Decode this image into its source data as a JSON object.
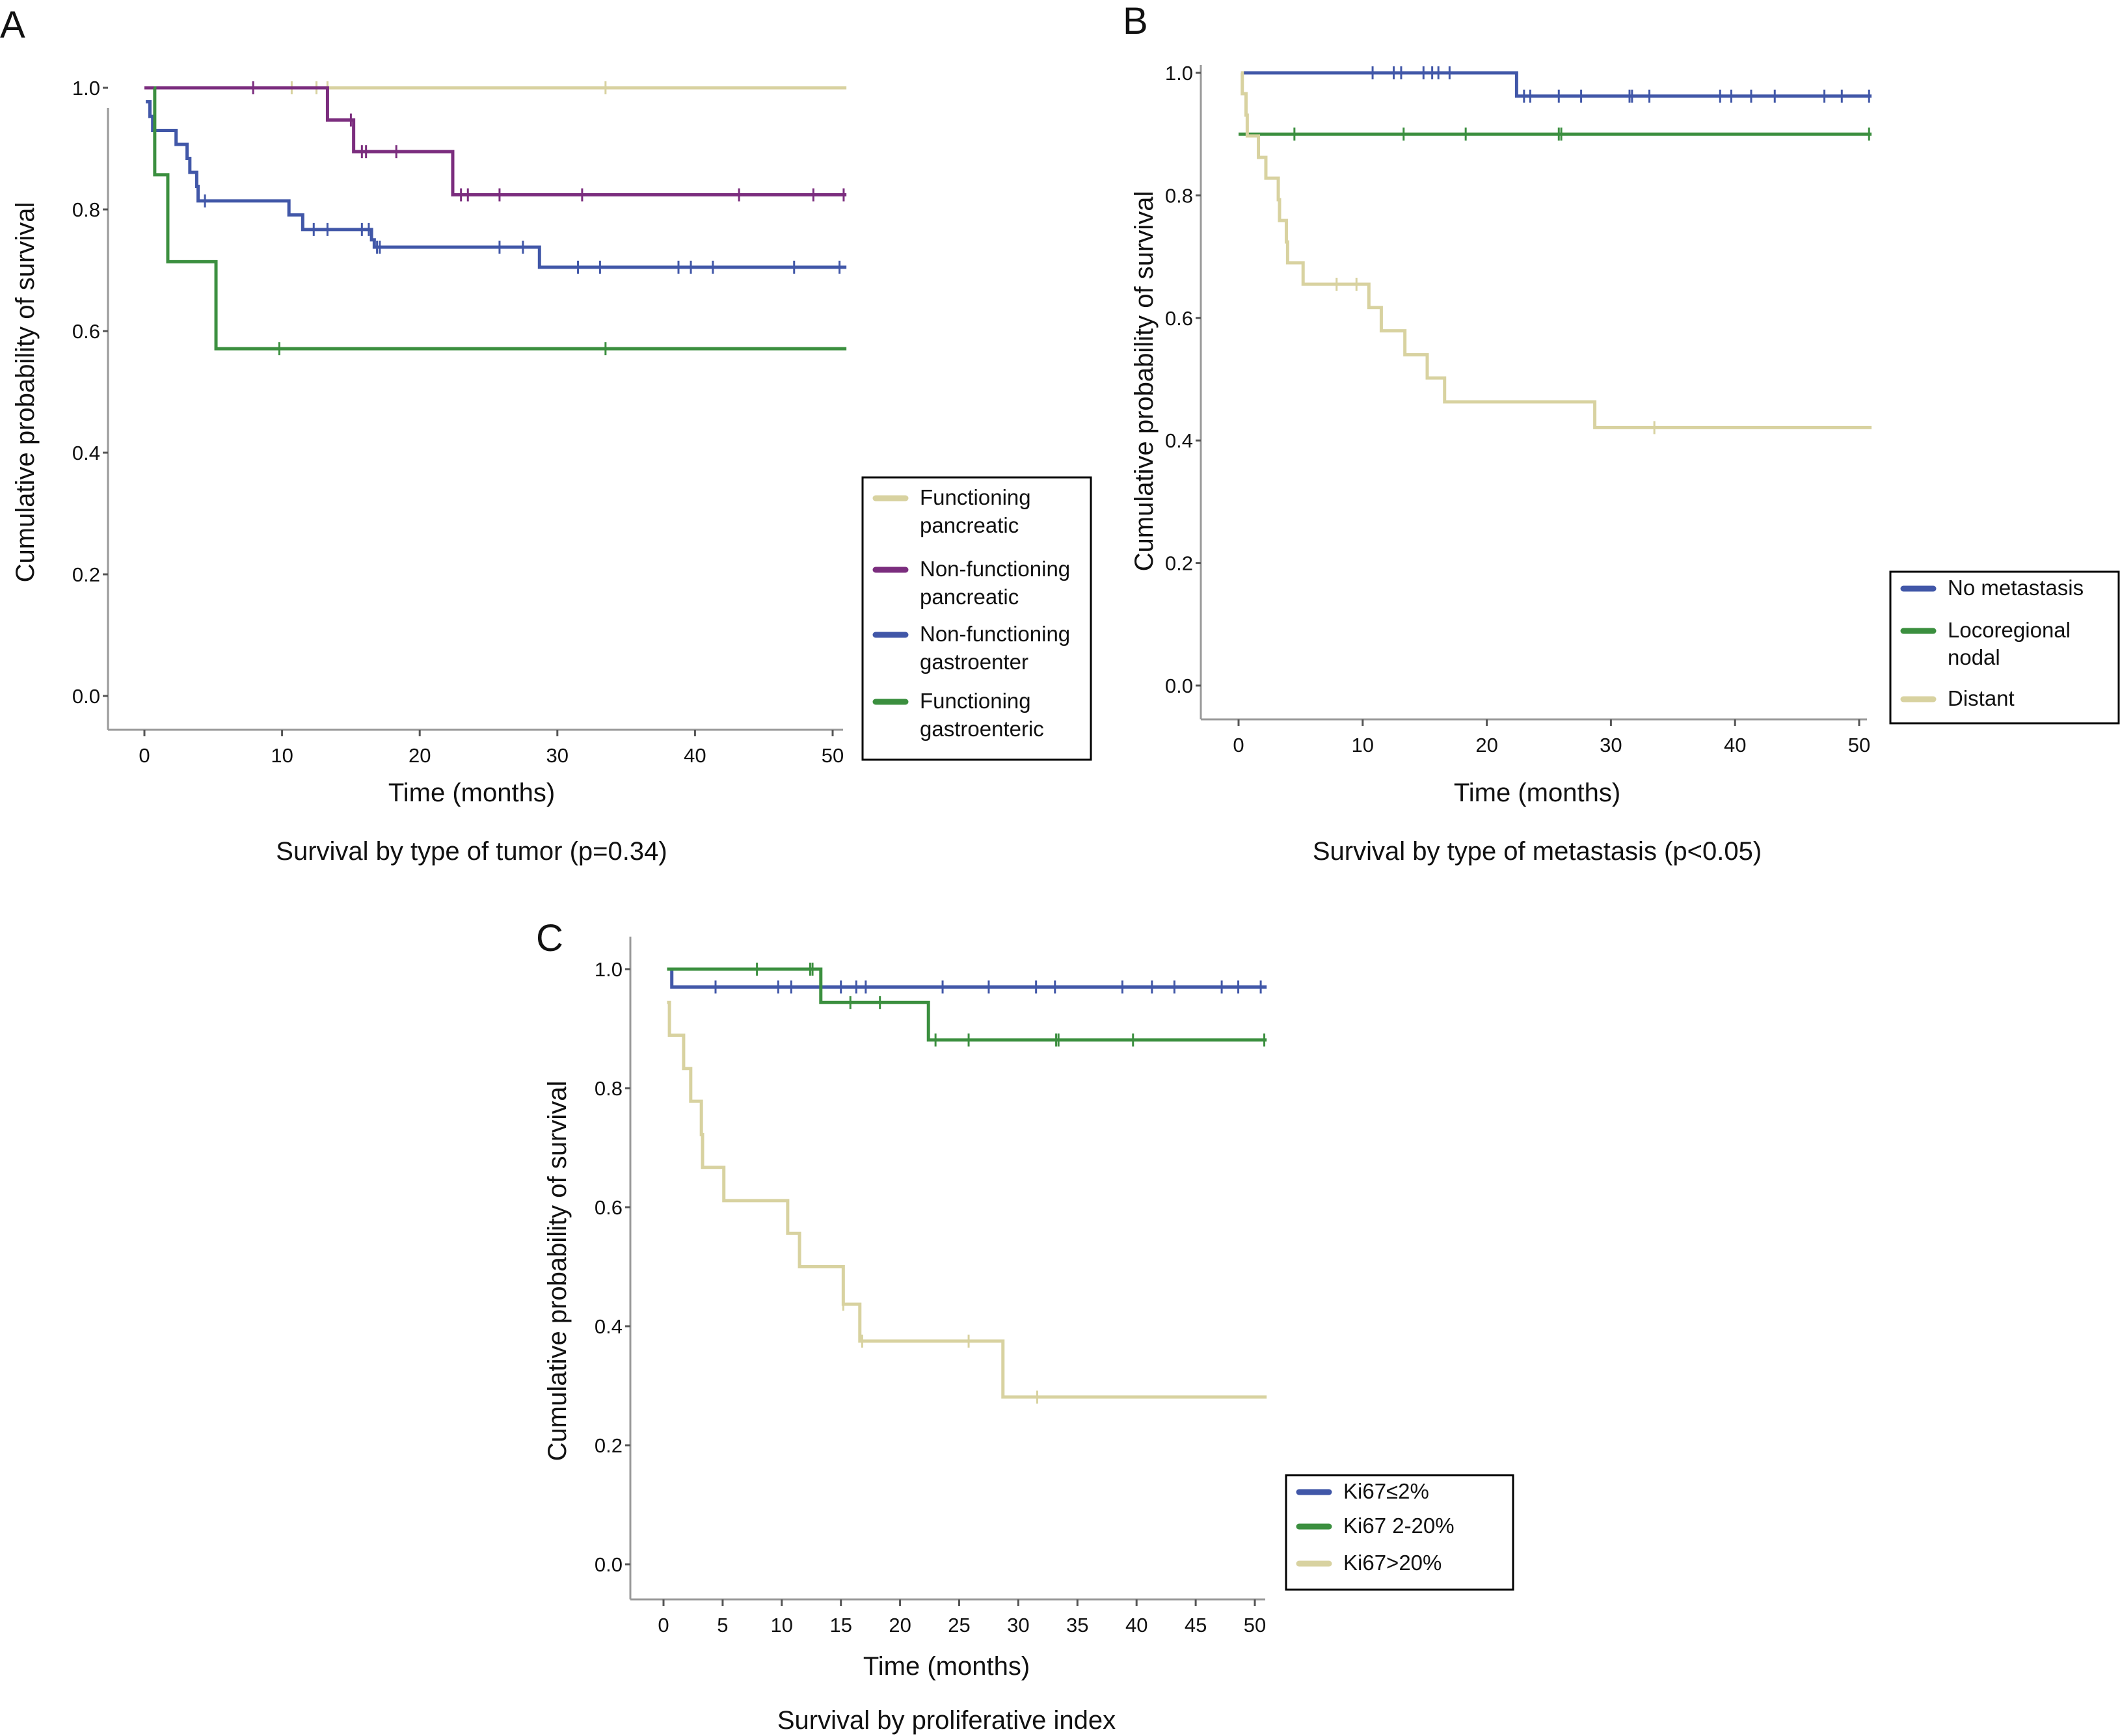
{
  "chart_data": [
    {
      "type": "line",
      "panel_label": "A",
      "title": "Survival by type of tumor (p=0.34)",
      "xlabel": "Time (months)",
      "ylabel": "Cumulative probability of survival",
      "xlim": [
        -3,
        51
      ],
      "ylim": [
        -0.05,
        1.05
      ],
      "xticks": [
        0,
        10,
        20,
        30,
        40,
        50
      ],
      "yticks": [
        "0.0",
        "0.2",
        "0.4",
        "0.6",
        "0.8",
        "1.0"
      ],
      "grid": false,
      "legend_placement": "right",
      "series": [
        {
          "name": "Functioning pancreatic",
          "legend_lines": [
            "Functioning",
            "pancreatic"
          ],
          "color": "#d8d2a0",
          "steps": [
            [
              0,
              1.0
            ]
          ],
          "end": 51,
          "censors": [
            10.7,
            12.5,
            13.3,
            33.5
          ]
        },
        {
          "name": "Non-functioning pancreatic",
          "legend_lines": [
            "Non-functioning",
            "pancreatic"
          ],
          "color": "#7b2d7e",
          "steps": [
            [
              0,
              1.0
            ],
            [
              13.3,
              0.947
            ],
            [
              15.2,
              0.895
            ],
            [
              22.4,
              0.824
            ]
          ],
          "end": 51,
          "censors": [
            7.9,
            15.0,
            15.8,
            16.1,
            18.3,
            23.0,
            23.5,
            25.8,
            31.8,
            43.2,
            48.6,
            50.8
          ]
        },
        {
          "name": "Non-functioning gastroenter",
          "legend_lines": [
            "Non-functioning",
            "gastroenter"
          ],
          "color": "#4157a8",
          "steps": [
            [
              0.1,
              0.977
            ],
            [
              0.4,
              0.953
            ],
            [
              0.6,
              0.93
            ],
            [
              2.3,
              0.907
            ],
            [
              3.1,
              0.884
            ],
            [
              3.3,
              0.861
            ],
            [
              3.8,
              0.838
            ],
            [
              3.9,
              0.814
            ],
            [
              10.5,
              0.791
            ],
            [
              11.5,
              0.767
            ],
            [
              16.5,
              0.75
            ],
            [
              16.7,
              0.738
            ],
            [
              28.7,
              0.705
            ]
          ],
          "end": 51,
          "censors": [
            4.4,
            12.3,
            13.3,
            15.8,
            16.3,
            16.9,
            17.1,
            25.8,
            27.5,
            31.5,
            33.1,
            38.8,
            39.7,
            41.3,
            47.2,
            50.5
          ]
        },
        {
          "name": "Functioning gastroenteric",
          "legend_lines": [
            "Functioning",
            "gastroenteric"
          ],
          "color": "#3b8f3f",
          "steps": [
            [
              0.7,
              1.0
            ],
            [
              0.75,
              0.857
            ],
            [
              1.7,
              0.714
            ],
            [
              5.2,
              0.571
            ]
          ],
          "end": 51,
          "censors": [
            9.8,
            33.5
          ]
        }
      ]
    },
    {
      "type": "line",
      "panel_label": "B",
      "title": "Survival by type of metastasis (p<0.05)",
      "xlabel": "Time (months)",
      "ylabel": "Cumulative probability of survival",
      "xlim": [
        -3,
        51
      ],
      "ylim": [
        -0.05,
        1.05
      ],
      "xticks": [
        0,
        10,
        20,
        30,
        40,
        50
      ],
      "yticks": [
        "0.0",
        "0.2",
        "0.4",
        "0.6",
        "0.8",
        "1.0"
      ],
      "grid": false,
      "legend_placement": "right",
      "series": [
        {
          "name": "No metastasis",
          "legend_lines": [
            "No metastasis"
          ],
          "color": "#4157a8",
          "steps": [
            [
              0.2,
              1.0
            ],
            [
              22.4,
              0.962
            ]
          ],
          "end": 51,
          "censors": [
            10.8,
            12.5,
            13.1,
            14.9,
            15.6,
            16.1,
            17.0,
            23.0,
            23.5,
            25.8,
            27.6,
            31.5,
            31.7,
            33.1,
            38.8,
            39.7,
            41.3,
            43.2,
            47.2,
            48.6,
            50.8
          ]
        },
        {
          "name": "Locoregional nodal",
          "legend_lines": [
            "Locoregional",
            "nodal"
          ],
          "color": "#3b8f3f",
          "steps": [
            [
              0,
              0.9
            ]
          ],
          "end": 51,
          "censors": [
            4.5,
            13.3,
            18.3,
            25.8,
            26.0,
            50.8
          ]
        },
        {
          "name": "Distant",
          "legend_lines": [
            "Distant"
          ],
          "color": "#d8d2a0",
          "steps": [
            [
              0.2,
              1.0
            ],
            [
              0.3,
              0.966
            ],
            [
              0.6,
              0.931
            ],
            [
              0.7,
              0.897
            ],
            [
              1.6,
              0.862
            ],
            [
              2.2,
              0.828
            ],
            [
              3.2,
              0.793
            ],
            [
              3.3,
              0.759
            ],
            [
              3.85,
              0.724
            ],
            [
              3.95,
              0.69
            ],
            [
              5.2,
              0.655
            ],
            [
              10.5,
              0.617
            ],
            [
              11.5,
              0.579
            ],
            [
              13.4,
              0.54
            ],
            [
              15.2,
              0.502
            ],
            [
              16.6,
              0.463
            ],
            [
              28.7,
              0.421
            ]
          ],
          "end": 51,
          "censors": [
            7.9,
            9.5,
            33.5
          ]
        }
      ]
    },
    {
      "type": "line",
      "panel_label": "C",
      "title": "Survival by proliferative index",
      "xlabel": "Time (months)",
      "ylabel": "Cumulative probability of survival",
      "xlim": [
        -3,
        51
      ],
      "ylim": [
        -0.05,
        1.05
      ],
      "xticks": [
        0,
        5,
        10,
        15,
        20,
        25,
        30,
        35,
        40,
        45,
        50
      ],
      "yticks": [
        "0.0",
        "0.2",
        "0.4",
        "0.6",
        "0.8",
        "1.0"
      ],
      "grid": false,
      "legend_placement": "bottom-right",
      "series": [
        {
          "name": "Ki67≤2%",
          "legend_lines": [
            "Ki67≤2%"
          ],
          "color": "#4157a8",
          "steps": [
            [
              0.4,
              1.0
            ],
            [
              0.7,
              0.97
            ]
          ],
          "end": 51,
          "censors": [
            4.4,
            9.7,
            10.8,
            15.0,
            16.3,
            17.1,
            23.6,
            27.5,
            31.5,
            33.1,
            38.8,
            41.3,
            43.2,
            47.2,
            48.6,
            50.5
          ]
        },
        {
          "name": "Ki67 2-20%",
          "legend_lines": [
            "Ki67 2-20%"
          ],
          "color": "#3b8f3f",
          "steps": [
            [
              0.3,
              1.0
            ],
            [
              13.3,
              0.944
            ],
            [
              22.4,
              0.881
            ]
          ],
          "end": 51,
          "censors": [
            7.9,
            12.4,
            12.6,
            15.8,
            18.3,
            23.0,
            25.8,
            33.2,
            33.4,
            39.7,
            50.8
          ]
        },
        {
          "name": "Ki67>20%",
          "legend_lines": [
            "Ki67>20%"
          ],
          "color": "#d8d2a0",
          "steps": [
            [
              0.3,
              0.944
            ],
            [
              0.5,
              0.889
            ],
            [
              1.7,
              0.833
            ],
            [
              2.3,
              0.778
            ],
            [
              3.2,
              0.722
            ],
            [
              3.3,
              0.667
            ],
            [
              5.1,
              0.611
            ],
            [
              10.5,
              0.556
            ],
            [
              11.5,
              0.5
            ],
            [
              15.2,
              0.437
            ],
            [
              16.6,
              0.375
            ],
            [
              28.7,
              0.281
            ]
          ],
          "end": 51,
          "censors": [
            15.2,
            16.8,
            25.8,
            31.6
          ]
        }
      ]
    }
  ]
}
